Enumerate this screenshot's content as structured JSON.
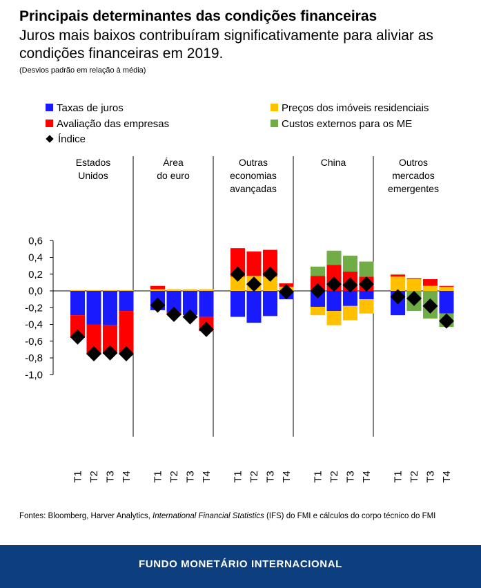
{
  "title": "Principais determinantes das condições financeiras",
  "subtitle": "Juros mais baixos contribuíram significativamente para aliviar as condições financeiras em 2019.",
  "unit_note": "(Desvios padrão em relação à média)",
  "source": {
    "prefix": "Fontes: Bloomberg, Harver Analytics, ",
    "italic": "International Financial Statistics",
    "suffix": " (IFS) do FMI e cálculos do corpo técnico do FMI"
  },
  "footer": "FUNDO MONETÁRIO INTERNACIONAL",
  "legend": [
    {
      "label": "Taxas de juros",
      "color": "#1a1aff"
    },
    {
      "label": "Preços dos imóveis residenciais",
      "color": "#ffc000"
    },
    {
      "label": "Avaliação das empresas",
      "color": "#ff0000"
    },
    {
      "label": "Custos externos para os ME",
      "color": "#70ad47"
    },
    {
      "label": "Índice",
      "color": "#000000"
    }
  ],
  "chart_data": {
    "type": "bar",
    "stacked": true,
    "ylim": [
      -1.0,
      0.6
    ],
    "yticks": [
      "0,6",
      "0,4",
      "0,2",
      "0,0",
      "-0,2",
      "-0,4",
      "-0,6",
      "-0,8",
      "-1,0"
    ],
    "quarters": [
      "T1",
      "T2",
      "T3",
      "T4"
    ],
    "groups": [
      {
        "label": "Estados Unidos",
        "label_lines": [
          "Estados",
          "Unidos"
        ],
        "interest": [
          -0.29,
          -0.4,
          -0.41,
          -0.24
        ],
        "housing": [
          0.01,
          0.01,
          0.01,
          0.01
        ],
        "corporate": [
          -0.27,
          -0.36,
          -0.34,
          -0.52
        ],
        "external": [
          0,
          0,
          0,
          0
        ],
        "index": [
          -0.55,
          -0.75,
          -0.74,
          -0.75
        ]
      },
      {
        "label": "Área do euro",
        "label_lines": [
          "Área",
          "do euro"
        ],
        "interest": [
          -0.23,
          -0.25,
          -0.28,
          -0.31
        ],
        "housing": [
          0.02,
          0.02,
          0.02,
          0.02
        ],
        "corporate": [
          0.04,
          -0.03,
          -0.01,
          -0.17
        ],
        "external": [
          0,
          0,
          0,
          0
        ],
        "index": [
          -0.17,
          -0.28,
          -0.31,
          -0.46
        ]
      },
      {
        "label": "Outras economias avançadas",
        "label_lines": [
          "Outras",
          "economias",
          "avançadas"
        ],
        "interest": [
          -0.31,
          -0.38,
          -0.3,
          -0.1
        ],
        "housing": [
          0.17,
          0.18,
          0.17,
          0.05
        ],
        "corporate": [
          0.34,
          0.29,
          0.32,
          0.04
        ],
        "external": [
          0,
          0,
          0,
          0
        ],
        "index": [
          0.2,
          0.08,
          0.2,
          -0.01
        ]
      },
      {
        "label": "China",
        "label_lines": [
          "China"
        ],
        "interest": [
          -0.19,
          -0.24,
          -0.18,
          -0.1
        ],
        "housing": [
          -0.1,
          -0.17,
          -0.17,
          -0.17
        ],
        "corporate": [
          0.18,
          0.31,
          0.23,
          0.17
        ],
        "external": [
          0.11,
          0.17,
          0.19,
          0.18
        ],
        "index": [
          0.0,
          0.08,
          0.07,
          0.08
        ]
      },
      {
        "label": "Outros mercados emergentes",
        "label_lines": [
          "Outros",
          "mercados",
          "emergentes"
        ],
        "interest": [
          -0.29,
          0,
          0,
          -0.27
        ],
        "housing": [
          0.17,
          0.14,
          0.06,
          0.05
        ],
        "corporate": [
          0.02,
          0.01,
          0.08,
          0.01
        ],
        "external": [
          0.01,
          -0.24,
          -0.33,
          -0.16
        ],
        "index": [
          -0.07,
          -0.09,
          -0.18,
          -0.36
        ]
      }
    ]
  }
}
